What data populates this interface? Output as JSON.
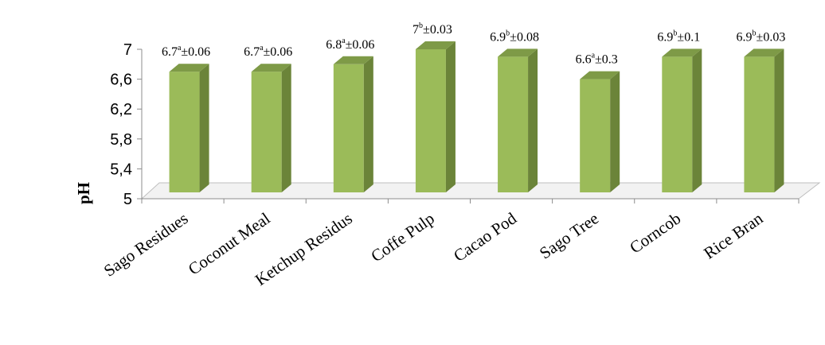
{
  "chart_data": {
    "type": "bar",
    "style": "3d-column",
    "ylabel": "pH",
    "ylim": [
      5,
      7
    ],
    "yticks": [
      5,
      5.4,
      5.8,
      6.2,
      6.6,
      7
    ],
    "ytick_labels": [
      "5",
      "5,4",
      "5,8",
      "6,2",
      "6,6",
      "7"
    ],
    "grid": false,
    "categories": [
      "Sago Residues",
      "Coconut Meal",
      "Ketchup Residus",
      "Coffe Pulp",
      "Cacao Pod",
      "Sago Tree",
      "Corncob",
      "Rice Bran"
    ],
    "values": [
      6.7,
      6.7,
      6.8,
      7,
      6.9,
      6.6,
      6.9,
      6.9
    ],
    "errors": [
      0.06,
      0.06,
      0.06,
      0.03,
      0.08,
      0.3,
      0.1,
      0.03
    ],
    "letters": [
      "a",
      "a",
      "a",
      "b",
      "b",
      "a",
      "b",
      "b"
    ],
    "data_labels": [
      {
        "value": "6.7",
        "sup": "a",
        "error": "±0.06"
      },
      {
        "value": "6.7",
        "sup": "a",
        "error": "±0.06"
      },
      {
        "value": "6.8",
        "sup": "a",
        "error": "±0.06"
      },
      {
        "value": "7",
        "sup": "b",
        "error": "±0.03"
      },
      {
        "value": "6.9",
        "sup": "b",
        "error": "±0.08"
      },
      {
        "value": "6.6",
        "sup": "a",
        "error": "±0.3"
      },
      {
        "value": "6.9",
        "sup": "b",
        "error": "±0.1"
      },
      {
        "value": "6.9",
        "sup": "b",
        "error": "±0.03"
      }
    ],
    "colors": {
      "front": "#9BBB59",
      "side": "#6B8439",
      "top": "#7E9A47"
    }
  }
}
